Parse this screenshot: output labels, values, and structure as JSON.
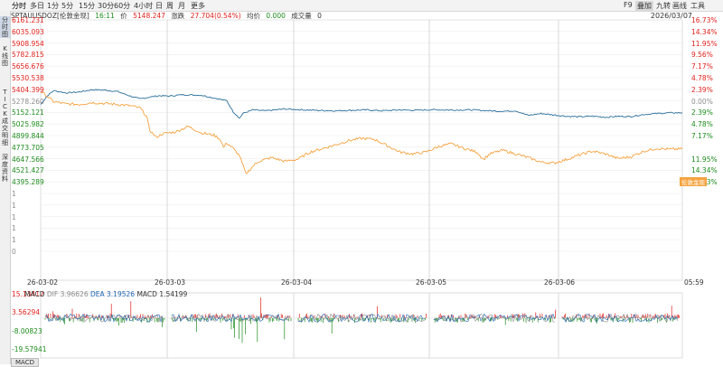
{
  "toolbar": {
    "periods": [
      "分时",
      "多日",
      "1分",
      "5分",
      "15分",
      "30分",
      "60分",
      "4小时",
      "日",
      "周",
      "月",
      "更多"
    ],
    "right": [
      "F9",
      "叠加",
      "九转",
      "画线",
      "工具"
    ],
    "date": "2026/03/07"
  },
  "sidebar": {
    "items": [
      {
        "label": "分\n时\n图",
        "selected": true
      },
      {
        "label": "K\n线\n图",
        "selected": false
      },
      {
        "label": "T\nI\nC\nK",
        "selected": false
      },
      {
        "label": "成\n交\n明\n细",
        "selected": false
      },
      {
        "label": "深\n度\n资\n料",
        "selected": false
      }
    ]
  },
  "info": {
    "symbol": "SPTAUUSDOZ[伦敦金现]",
    "time": "16:11",
    "price_label": "价",
    "price": "5148.247",
    "change_label": "涨跌",
    "change": "27.704(0.54%)",
    "avg_label": "均价",
    "avg": "0.000",
    "volume_label": "成交量",
    "volume": "0"
  },
  "gold_tag": "伦敦金现",
  "colors": {
    "series1": "#2a6f9c",
    "series2": "#f5a340",
    "up": "#e0201b",
    "down": "#1b8a1b",
    "dif": "#8c8c8c",
    "dea": "#2066b3"
  },
  "chart_data": [
    {
      "type": "line",
      "y_ticks_left": [
        {
          "v": "6161.231",
          "c": "red"
        },
        {
          "v": "6035.093",
          "c": "red"
        },
        {
          "v": "5908.954",
          "c": "red"
        },
        {
          "v": "5782.815",
          "c": "red"
        },
        {
          "v": "5656.676",
          "c": "red"
        },
        {
          "v": "5530.538",
          "c": "red"
        },
        {
          "v": "5404.399",
          "c": "red"
        },
        {
          "v": "5278.260",
          "c": "gray"
        },
        {
          "v": "5152.121",
          "c": "green"
        },
        {
          "v": "5025.982",
          "c": "green"
        },
        {
          "v": "4899.844",
          "c": "green"
        },
        {
          "v": "4773.705",
          "c": "green"
        },
        {
          "v": "4647.566",
          "c": "green"
        },
        {
          "v": "4521.427",
          "c": "green"
        },
        {
          "v": "4395.289",
          "c": "green"
        },
        {
          "v": "1",
          "c": "gray"
        },
        {
          "v": "1",
          "c": "gray"
        },
        {
          "v": "1",
          "c": "gray"
        },
        {
          "v": "1",
          "c": "gray"
        },
        {
          "v": "1",
          "c": "gray"
        },
        {
          "v": "0",
          "c": "gray"
        }
      ],
      "y_ticks_right": [
        {
          "v": "16.73%",
          "c": "red"
        },
        {
          "v": "14.34%",
          "c": "red"
        },
        {
          "v": "11.95%",
          "c": "red"
        },
        {
          "v": "9.56%",
          "c": "red"
        },
        {
          "v": "7.17%",
          "c": "red"
        },
        {
          "v": "4.78%",
          "c": "red"
        },
        {
          "v": "2.39%",
          "c": "red"
        },
        {
          "v": "0.00%",
          "c": "gray"
        },
        {
          "v": "2.39%",
          "c": "green"
        },
        {
          "v": "4.78%",
          "c": "green"
        },
        {
          "v": "7.17%",
          "c": "green"
        },
        {
          "v": "",
          "c": "green"
        },
        {
          "v": "11.95%",
          "c": "green"
        },
        {
          "v": "14.34%",
          "c": "green"
        },
        {
          "v": "16.73%",
          "c": "green"
        }
      ],
      "x_labels": [
        "26-03-02",
        "26-03-03",
        "26-03-04",
        "26-03-05",
        "26-03-06",
        "05:59"
      ],
      "ylim": [
        4395.289,
        6161.231
      ],
      "series": [
        {
          "points": [
            [
              0,
              5240
            ],
            [
              0.01,
              5330
            ],
            [
              0.02,
              5390
            ],
            [
              0.04,
              5365
            ],
            [
              0.06,
              5375
            ],
            [
              0.08,
              5400
            ],
            [
              0.1,
              5395
            ],
            [
              0.12,
              5380
            ],
            [
              0.14,
              5330
            ],
            [
              0.155,
              5300
            ],
            [
              0.17,
              5320
            ],
            [
              0.185,
              5335
            ],
            [
              0.2,
              5330
            ],
            [
              0.22,
              5345
            ],
            [
              0.25,
              5340
            ],
            [
              0.27,
              5310
            ],
            [
              0.29,
              5280
            ],
            [
              0.3,
              5160
            ],
            [
              0.31,
              5090
            ],
            [
              0.315,
              5140
            ],
            [
              0.33,
              5180
            ],
            [
              0.35,
              5170
            ],
            [
              0.38,
              5190
            ],
            [
              0.41,
              5180
            ],
            [
              0.43,
              5175
            ],
            [
              0.46,
              5170
            ],
            [
              0.48,
              5175
            ],
            [
              0.51,
              5180
            ],
            [
              0.53,
              5170
            ],
            [
              0.56,
              5180
            ],
            [
              0.58,
              5175
            ],
            [
              0.61,
              5182
            ],
            [
              0.64,
              5178
            ],
            [
              0.67,
              5180
            ],
            [
              0.7,
              5170
            ],
            [
              0.72,
              5165
            ],
            [
              0.74,
              5170
            ],
            [
              0.76,
              5120
            ],
            [
              0.78,
              5140
            ],
            [
              0.8,
              5125
            ],
            [
              0.82,
              5110
            ],
            [
              0.84,
              5105
            ],
            [
              0.86,
              5112
            ],
            [
              0.88,
              5100
            ],
            [
              0.9,
              5110
            ],
            [
              0.92,
              5108
            ],
            [
              0.94,
              5130
            ],
            [
              0.96,
              5140
            ],
            [
              0.98,
              5148
            ],
            [
              1.0,
              5148
            ]
          ]
        },
        {
          "points": [
            [
              0,
              5380
            ],
            [
              0.01,
              5330
            ],
            [
              0.02,
              5270
            ],
            [
              0.04,
              5245
            ],
            [
              0.06,
              5240
            ],
            [
              0.08,
              5260
            ],
            [
              0.1,
              5250
            ],
            [
              0.12,
              5240
            ],
            [
              0.14,
              5225
            ],
            [
              0.155,
              5200
            ],
            [
              0.165,
              5110
            ],
            [
              0.17,
              4960
            ],
            [
              0.18,
              4880
            ],
            [
              0.19,
              4920
            ],
            [
              0.21,
              4940
            ],
            [
              0.23,
              5000
            ],
            [
              0.25,
              4930
            ],
            [
              0.27,
              4905
            ],
            [
              0.28,
              4860
            ],
            [
              0.285,
              4770
            ],
            [
              0.29,
              4820
            ],
            [
              0.3,
              4760
            ],
            [
              0.31,
              4680
            ],
            [
              0.32,
              4480
            ],
            [
              0.33,
              4560
            ],
            [
              0.34,
              4620
            ],
            [
              0.36,
              4660
            ],
            [
              0.38,
              4620
            ],
            [
              0.4,
              4640
            ],
            [
              0.42,
              4720
            ],
            [
              0.44,
              4760
            ],
            [
              0.46,
              4800
            ],
            [
              0.48,
              4845
            ],
            [
              0.5,
              4870
            ],
            [
              0.52,
              4860
            ],
            [
              0.54,
              4790
            ],
            [
              0.56,
              4720
            ],
            [
              0.58,
              4700
            ],
            [
              0.6,
              4720
            ],
            [
              0.62,
              4780
            ],
            [
              0.64,
              4810
            ],
            [
              0.66,
              4760
            ],
            [
              0.68,
              4720
            ],
            [
              0.69,
              4640
            ],
            [
              0.7,
              4700
            ],
            [
              0.72,
              4740
            ],
            [
              0.74,
              4700
            ],
            [
              0.76,
              4660
            ],
            [
              0.78,
              4610
            ],
            [
              0.8,
              4600
            ],
            [
              0.82,
              4640
            ],
            [
              0.84,
              4690
            ],
            [
              0.86,
              4730
            ],
            [
              0.88,
              4700
            ],
            [
              0.9,
              4650
            ],
            [
              0.92,
              4670
            ],
            [
              0.94,
              4730
            ],
            [
              0.96,
              4760
            ],
            [
              0.98,
              4750
            ],
            [
              1.0,
              4755
            ]
          ]
        }
      ]
    },
    {
      "type": "bar",
      "indicator": "MACD",
      "dif_label": "DIF",
      "dif": "3.96626",
      "dea_label": "DEA",
      "dea": "3.19526",
      "macd_label": "MACD",
      "macd": "1.54199",
      "y_ticks": [
        {
          "v": "15.13412",
          "c": "red"
        },
        {
          "v": "3.56294",
          "c": "red"
        },
        {
          "v": "-8.00823",
          "c": "green"
        },
        {
          "v": "-19.57941",
          "c": "green"
        }
      ],
      "ylim": [
        -25,
        15.13412
      ]
    }
  ],
  "macd_tab": "MACD"
}
